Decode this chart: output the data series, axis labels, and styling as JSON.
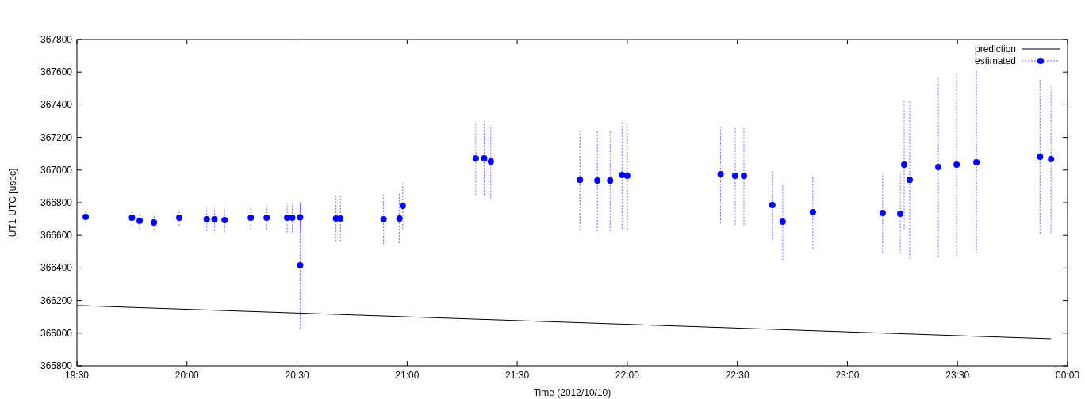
{
  "chart_data": {
    "type": "scatter",
    "xlabel": "Time (2012/10/10)",
    "ylabel": "UT1-UTC [usec]",
    "xlim": [
      19.5,
      24
    ],
    "xticks": [
      {
        "value": 19.5,
        "label": "19:30"
      },
      {
        "value": 20,
        "label": "20:00"
      },
      {
        "value": 20.5,
        "label": "20:30"
      },
      {
        "value": 21,
        "label": "21:00"
      },
      {
        "value": 21.5,
        "label": "21:30"
      },
      {
        "value": 22,
        "label": "22:00"
      },
      {
        "value": 22.5,
        "label": "22:30"
      },
      {
        "value": 23,
        "label": "23:00"
      },
      {
        "value": 23.5,
        "label": "23:30"
      },
      {
        "value": 24,
        "label": "00:00"
      }
    ],
    "ylim": [
      365800,
      367800
    ],
    "yticks": [
      365800,
      366000,
      366200,
      366400,
      366600,
      366800,
      367000,
      367200,
      367400,
      367600,
      367800
    ],
    "grid": false,
    "legend": "top right",
    "series": [
      {
        "name": "prediction",
        "type": "line",
        "color": "#000000",
        "x": [
          19.5,
          23.925
        ],
        "values": [
          366170,
          365965
        ]
      },
      {
        "name": "estimated",
        "color": "#0000ff",
        "marker": "circle",
        "x": [
          19.54,
          19.75,
          19.785,
          19.85,
          19.965,
          20.09,
          20.125,
          20.171,
          20.29,
          20.362,
          20.455,
          20.478,
          20.514,
          20.514,
          20.677,
          20.697,
          20.893,
          20.965,
          20.98,
          21.312,
          21.35,
          21.38,
          21.785,
          21.864,
          21.922,
          21.976,
          22.0,
          22.424,
          22.49,
          22.53,
          22.659,
          22.706,
          22.843,
          23.16,
          23.24,
          23.258,
          23.283,
          23.413,
          23.496,
          23.586,
          23.875,
          23.925
        ],
        "values": [
          366713,
          366708,
          366688,
          366679,
          366708,
          366698,
          366698,
          366693,
          366708,
          366708,
          366708,
          366708,
          366710,
          366416,
          366703,
          366703,
          366698,
          366703,
          366780,
          367072,
          367072,
          367052,
          366940,
          366936,
          366936,
          366970,
          366965,
          366975,
          366965,
          366965,
          366785,
          366683,
          366742,
          366737,
          366732,
          367033,
          366940,
          367018,
          367033,
          367048,
          367082,
          367067
        ],
        "errors": [
          35,
          50,
          50,
          50,
          50,
          70,
          70,
          70,
          70,
          70,
          90,
          90,
          90,
          390,
          140,
          140,
          150,
          150,
          140,
          225,
          225,
          225,
          310,
          310,
          310,
          330,
          330,
          300,
          300,
          300,
          210,
          235,
          225,
          245,
          245,
          395,
          480,
          550,
          560,
          560,
          470,
          450
        ]
      }
    ]
  }
}
